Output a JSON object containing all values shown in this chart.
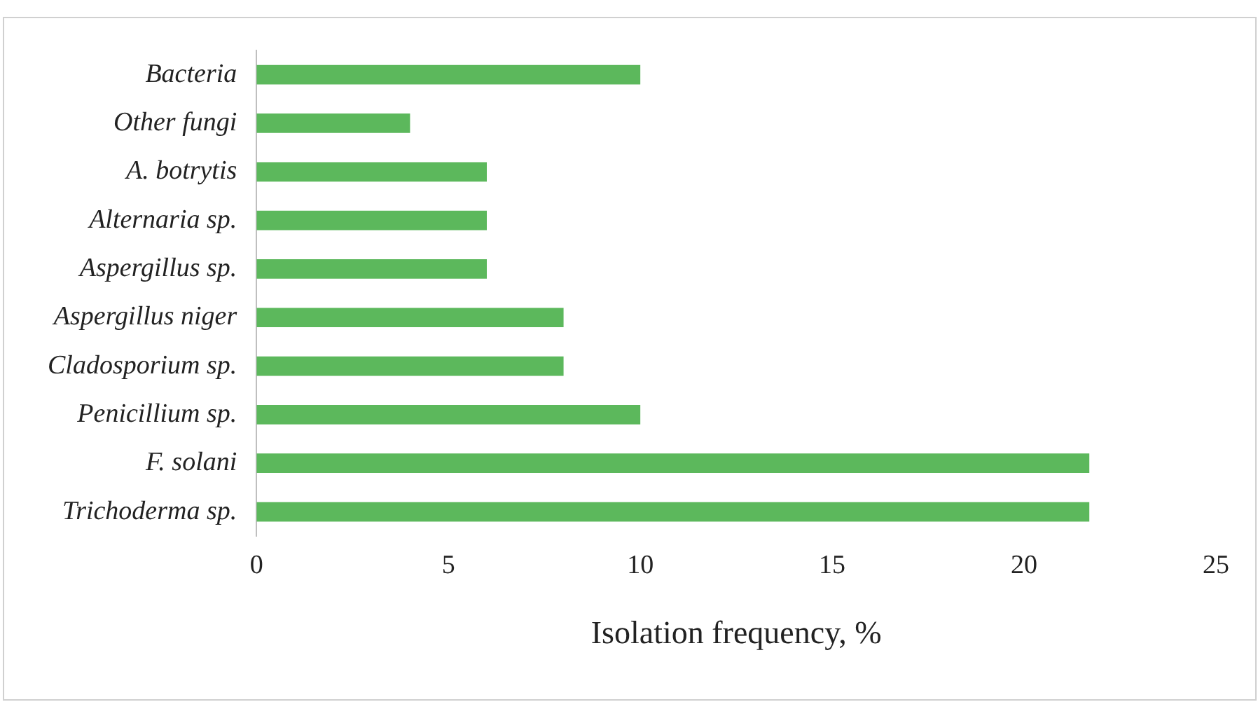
{
  "chart_data": {
    "type": "bar",
    "orientation": "horizontal",
    "xlabel": "Isolation frequency, %",
    "categories": [
      "Bacteria",
      "Other fungi",
      "A. botrytis",
      "Alternaria sp.",
      "Aspergillus sp.",
      "Aspergillus niger",
      "Cladosporium sp.",
      "Penicillium sp.",
      "F. solani",
      "Trichoderma sp."
    ],
    "values": [
      10,
      4,
      6,
      6,
      6,
      8,
      8,
      10,
      21.7,
      21.7
    ],
    "color": "#5cb85c",
    "xlim": [
      0,
      25
    ],
    "xticks": [
      0,
      5,
      10,
      15,
      20,
      25
    ],
    "grid": false
  }
}
